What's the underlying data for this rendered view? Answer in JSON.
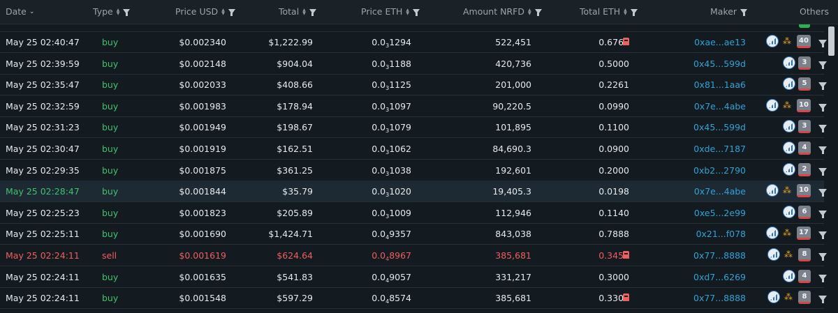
{
  "header": {
    "date": "Date",
    "type": "Type",
    "price_usd": "Price USD",
    "total": "Total",
    "price_eth": "Price ETH",
    "amount": "Amount NRFD",
    "total_eth": "Total ETH",
    "maker": "Maker",
    "others": "Others"
  },
  "colors": {
    "buy": "#3ec16d",
    "sell": "#ef5f5f",
    "maker": "#2ea3d6",
    "badge_bar": "#d84747"
  },
  "rows": [
    {
      "date": "May 25 02:40:47",
      "type": "buy",
      "usd": "$0.002340",
      "total": "$1,222.99",
      "eth_a": "0.0",
      "eth_sub": "3",
      "eth_b": "1294",
      "amount": "522,451",
      "teth": "0.6764",
      "maker": "0xae...ae13",
      "count": "40",
      "gauge": true,
      "tree": true,
      "flag": true
    },
    {
      "date": "May 25 02:39:59",
      "type": "buy",
      "usd": "$0.002148",
      "total": "$904.04",
      "eth_a": "0.0",
      "eth_sub": "3",
      "eth_b": "1188",
      "amount": "420,736",
      "teth": "0.5000",
      "maker": "0x45...599d",
      "count": "3",
      "gauge": true,
      "tree": false,
      "flag": false
    },
    {
      "date": "May 25 02:35:47",
      "type": "buy",
      "usd": "$0.002033",
      "total": "$408.66",
      "eth_a": "0.0",
      "eth_sub": "3",
      "eth_b": "1125",
      "amount": "201,000",
      "teth": "0.2261",
      "maker": "0x81...1aa6",
      "count": "5",
      "gauge": true,
      "tree": false,
      "flag": false
    },
    {
      "date": "May 25 02:32:59",
      "type": "buy",
      "usd": "$0.001983",
      "total": "$178.94",
      "eth_a": "0.0",
      "eth_sub": "3",
      "eth_b": "1097",
      "amount": "90,220.5",
      "teth": "0.0990",
      "maker": "0x7e...4abe",
      "count": "10",
      "gauge": true,
      "tree": true,
      "flag": false
    },
    {
      "date": "May 25 02:31:23",
      "type": "buy",
      "usd": "$0.001949",
      "total": "$198.67",
      "eth_a": "0.0",
      "eth_sub": "3",
      "eth_b": "1079",
      "amount": "101,895",
      "teth": "0.1100",
      "maker": "0x45...599d",
      "count": "3",
      "gauge": true,
      "tree": false,
      "flag": false
    },
    {
      "date": "May 25 02:30:47",
      "type": "buy",
      "usd": "$0.001919",
      "total": "$162.51",
      "eth_a": "0.0",
      "eth_sub": "3",
      "eth_b": "1062",
      "amount": "84,690.3",
      "teth": "0.0900",
      "maker": "0xde...7187",
      "count": "4",
      "gauge": true,
      "tree": false,
      "flag": false
    },
    {
      "date": "May 25 02:29:35",
      "type": "buy",
      "usd": "$0.001875",
      "total": "$361.25",
      "eth_a": "0.0",
      "eth_sub": "3",
      "eth_b": "1038",
      "amount": "192,601",
      "teth": "0.2000",
      "maker": "0xb2...2790",
      "count": "2",
      "gauge": true,
      "tree": false,
      "flag": false
    },
    {
      "date": "May 25 02:28:47",
      "type": "buy",
      "usd": "$0.001844",
      "total": "$35.79",
      "eth_a": "0.0",
      "eth_sub": "3",
      "eth_b": "1020",
      "amount": "19,405.3",
      "teth": "0.0198",
      "maker": "0x7e...4abe",
      "count": "10",
      "gauge": true,
      "tree": true,
      "flag": false,
      "highlight": true
    },
    {
      "date": "May 25 02:25:23",
      "type": "buy",
      "usd": "$0.001823",
      "total": "$205.89",
      "eth_a": "0.0",
      "eth_sub": "3",
      "eth_b": "1009",
      "amount": "112,946",
      "teth": "0.1140",
      "maker": "0xe5...2e99",
      "count": "6",
      "gauge": true,
      "tree": false,
      "flag": false
    },
    {
      "date": "May 25 02:25:11",
      "type": "buy",
      "usd": "$0.001690",
      "total": "$1,424.71",
      "eth_a": "0.0",
      "eth_sub": "4",
      "eth_b": "9357",
      "amount": "843,038",
      "teth": "0.7888",
      "maker": "0x21...f078",
      "count": "17",
      "gauge": true,
      "tree": true,
      "flag": false
    },
    {
      "date": "May 25 02:24:11",
      "type": "sell",
      "usd": "$0.001619",
      "total": "$624.64",
      "eth_a": "0.0",
      "eth_sub": "4",
      "eth_b": "8967",
      "amount": "385,681",
      "teth": "0.3458",
      "maker": "0x77...8888",
      "count": "8",
      "gauge": true,
      "tree": true,
      "flag": true
    },
    {
      "date": "May 25 02:24:11",
      "type": "buy",
      "usd": "$0.001635",
      "total": "$541.83",
      "eth_a": "0.0",
      "eth_sub": "4",
      "eth_b": "9057",
      "amount": "331,217",
      "teth": "0.3000",
      "maker": "0xd7...6269",
      "count": "4",
      "gauge": true,
      "tree": false,
      "flag": false
    },
    {
      "date": "May 25 02:24:11",
      "type": "buy",
      "usd": "$0.001548",
      "total": "$597.29",
      "eth_a": "0.0",
      "eth_sub": "4",
      "eth_b": "8574",
      "amount": "385,681",
      "teth": "0.3307",
      "maker": "0x77...8888",
      "count": "8",
      "gauge": true,
      "tree": true,
      "flag": true
    }
  ]
}
